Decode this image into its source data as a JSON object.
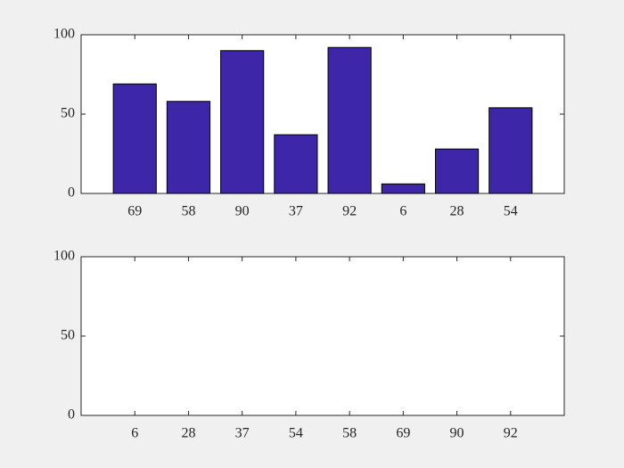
{
  "chart_data": [
    {
      "type": "bar",
      "categories": [
        "69",
        "58",
        "90",
        "37",
        "92",
        "6",
        "28",
        "54"
      ],
      "values": [
        69,
        58,
        90,
        37,
        92,
        6,
        28,
        54
      ],
      "color": "#3d26a8",
      "ylim": [
        0,
        100
      ],
      "yticks": [
        0,
        50,
        100
      ]
    },
    {
      "type": "bar",
      "categories": [
        "6",
        "28",
        "37",
        "54",
        "58",
        "69",
        "90",
        "92"
      ],
      "ylim": [
        0,
        100
      ],
      "yticks": [
        0,
        50,
        100
      ]
    }
  ]
}
